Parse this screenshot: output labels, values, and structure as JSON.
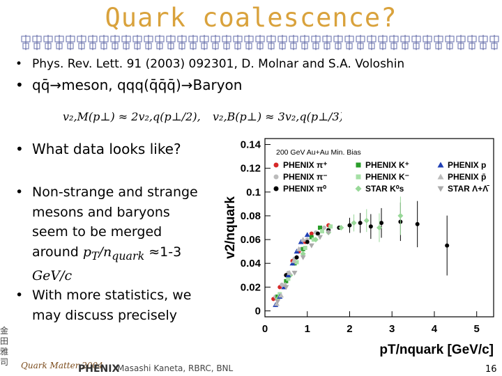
{
  "title": "Quark coalescence?",
  "bullets": {
    "ref": "Phys. Rev. Lett. 91 (2003) 092301, D. Molnar and S.A. Voloshin",
    "coalescence": "qq̄→meson, qqq(q̄q̄q̄)→Baryon",
    "data_question": "What data looks like?",
    "merge_lines": [
      "Non-strange and strange",
      "mesons and baryons",
      "seem to be merged",
      "around"
    ],
    "merge_tail": "≈1-3",
    "merge_unit": "GeV/c",
    "stats_lines": [
      "With more statistics, we",
      "may discuss precisely"
    ]
  },
  "formula": {
    "meson": "v₂,M(p⊥) ≈ 2v₂,q(p⊥/2),",
    "baryon": "v₂,B(p⊥) ≈ 3v₂,q(p⊥/3)"
  },
  "footer": {
    "conference": "Quark Matter 2004",
    "logo": "PHENIX",
    "author": "Masashi Kaneta, RBRC, BNL",
    "slide_number": "16"
  },
  "chart_data": {
    "type": "scatter",
    "annotation": "200 GeV Au+Au Min. Bias",
    "ylabel": "v2/nquark",
    "xlabel": "pT/nquark [GeV/c]",
    "xlim": [
      0,
      5.4
    ],
    "ylim": [
      -0.005,
      0.145
    ],
    "x_ticks": [
      "0",
      "1",
      "2",
      "3",
      "4",
      "5"
    ],
    "y_ticks": [
      "0",
      "0.02",
      "0.04",
      "0.06",
      "0.08",
      "0.1",
      "0.12",
      "0.14"
    ],
    "legend": [
      [
        "PHENIX π⁺",
        "PHENIX K⁺",
        "PHENIX p"
      ],
      [
        "PHENIX π⁻",
        "PHENIX K⁻",
        "PHENIX p̄"
      ],
      [
        "PHENIX π⁰",
        "STAR K⁰s",
        "STAR Λ+Λ̄"
      ]
    ],
    "series": [
      {
        "name": "PHENIX π⁺",
        "color": "#d62828",
        "marker": "circle",
        "x": [
          0.2,
          0.35,
          0.5,
          0.65,
          0.8,
          0.95,
          1.1,
          1.3,
          1.5
        ],
        "y": [
          0.01,
          0.02,
          0.03,
          0.042,
          0.05,
          0.058,
          0.065,
          0.07,
          0.072
        ]
      },
      {
        "name": "PHENIX π⁻",
        "color": "#bbbbbb",
        "marker": "circle",
        "x": [
          0.25,
          0.4,
          0.55,
          0.7,
          0.85,
          1.0,
          1.2,
          1.4
        ],
        "y": [
          0.012,
          0.022,
          0.032,
          0.044,
          0.052,
          0.06,
          0.066,
          0.07
        ]
      },
      {
        "name": "PHENIX π⁰",
        "color": "#000000",
        "marker": "circle",
        "x": [
          0.5,
          0.75,
          1.0,
          1.25,
          1.5,
          1.75,
          2.0,
          2.25,
          2.5,
          2.75,
          3.2,
          3.6,
          4.3
        ],
        "y": [
          0.03,
          0.045,
          0.058,
          0.065,
          0.068,
          0.07,
          0.072,
          0.074,
          0.071,
          0.074,
          0.075,
          0.073,
          0.055
        ]
      },
      {
        "name": "PHENIX K⁺",
        "color": "#2a9d2a",
        "marker": "square",
        "x": [
          0.3,
          0.5,
          0.7,
          0.9,
          1.1,
          1.3
        ],
        "y": [
          0.012,
          0.025,
          0.04,
          0.052,
          0.062,
          0.07
        ]
      },
      {
        "name": "PHENIX K⁻",
        "color": "#a6e0a6",
        "marker": "square",
        "x": [
          0.35,
          0.55,
          0.75,
          0.95,
          1.15,
          1.35,
          1.55
        ],
        "y": [
          0.014,
          0.027,
          0.041,
          0.053,
          0.06,
          0.067,
          0.071
        ]
      },
      {
        "name": "STAR K⁰s",
        "color": "#98d898",
        "marker": "diamond",
        "x": [
          0.3,
          0.6,
          0.9,
          1.2,
          1.5,
          1.8,
          2.1,
          2.4,
          2.7,
          3.2
        ],
        "y": [
          0.01,
          0.03,
          0.048,
          0.06,
          0.066,
          0.07,
          0.074,
          0.076,
          0.07,
          0.08
        ]
      },
      {
        "name": "PHENIX p",
        "color": "#1f3fb4",
        "marker": "triangle",
        "x": [
          0.25,
          0.35,
          0.45,
          0.55,
          0.65,
          0.75,
          0.85,
          1.0
        ],
        "y": [
          0.005,
          0.012,
          0.02,
          0.03,
          0.04,
          0.05,
          0.058,
          0.064
        ]
      },
      {
        "name": "PHENIX p̄",
        "color": "#bbbbbb",
        "marker": "triangle",
        "x": [
          0.28,
          0.38,
          0.48,
          0.58,
          0.68,
          0.8,
          0.9
        ],
        "y": [
          0.006,
          0.013,
          0.022,
          0.032,
          0.042,
          0.052,
          0.06
        ]
      },
      {
        "name": "STAR Λ+Λ̄",
        "color": "#aaaaaa",
        "marker": "triangle-down",
        "x": [
          0.3,
          0.5,
          0.7,
          0.9,
          1.1,
          1.3,
          1.5
        ],
        "y": [
          0.008,
          0.02,
          0.032,
          0.045,
          0.055,
          0.062,
          0.066
        ]
      }
    ]
  }
}
